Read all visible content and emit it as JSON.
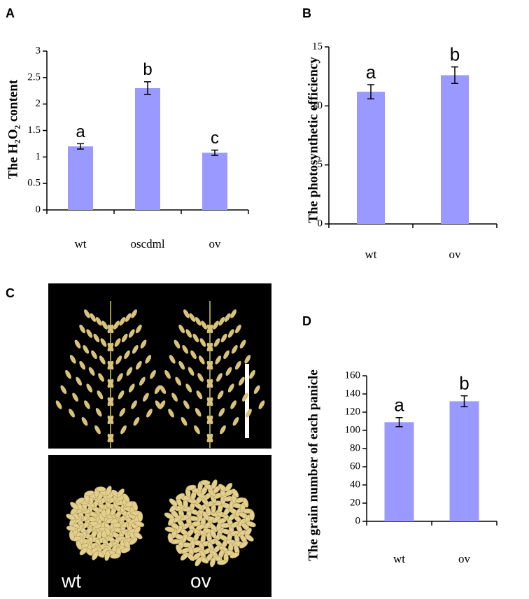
{
  "chart_data": [
    {
      "type": "bar",
      "panel": "A",
      "y_label": "The H₂O₂ content",
      "categories": [
        "wt",
        "oscdml",
        "ov"
      ],
      "values": [
        1.2,
        2.3,
        1.08
      ],
      "errors": [
        0.05,
        0.12,
        0.05
      ],
      "annotations": [
        "a",
        "b",
        "c"
      ],
      "color": "#9999ff",
      "ylim": [
        0,
        3
      ],
      "yticks": [
        0,
        0.5,
        1,
        1.5,
        2,
        2.5,
        3
      ]
    },
    {
      "type": "bar",
      "panel": "B",
      "y_label": "The photosynthetic efficiency",
      "categories": [
        "wt",
        "ov"
      ],
      "values": [
        11.2,
        12.6
      ],
      "errors": [
        0.6,
        0.7
      ],
      "annotations": [
        "a",
        "b"
      ],
      "color": "#9999ff",
      "ylim": [
        0,
        15
      ],
      "yticks": [
        0,
        5,
        10,
        15
      ]
    },
    {
      "type": "bar",
      "panel": "D",
      "y_label": "The grain number of each panicle",
      "categories": [
        "wt",
        "ov"
      ],
      "values": [
        109,
        132
      ],
      "errors": [
        5,
        6
      ],
      "annotations": [
        "a",
        "b"
      ],
      "color": "#9999ff",
      "ylim": [
        0,
        160
      ],
      "yticks": [
        0,
        20,
        40,
        60,
        80,
        100,
        120,
        140,
        160
      ]
    }
  ],
  "image_panel": {
    "panel": "C",
    "labels": [
      "wt",
      "ov"
    ]
  }
}
